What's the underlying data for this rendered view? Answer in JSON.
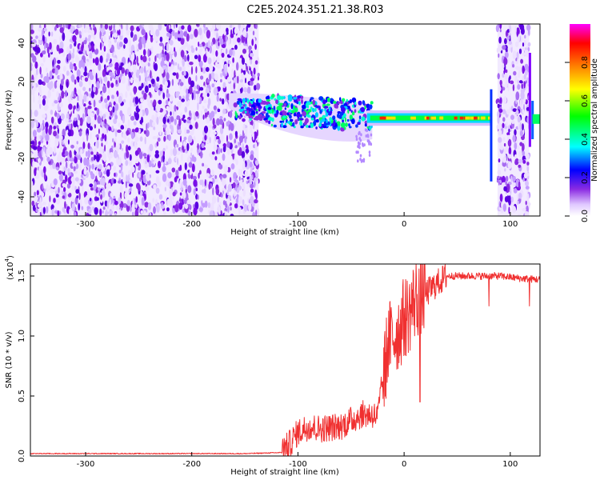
{
  "title": "C2E5.2024.351.21.38.R03",
  "chart_data": [
    {
      "type": "heatmap",
      "xlabel": "Height of straight line (km)",
      "ylabel": "Frequency (Hz)",
      "xlim": [
        -352,
        128
      ],
      "ylim": [
        -50,
        50
      ],
      "xticks": [
        -300,
        -200,
        -100,
        0,
        100
      ],
      "yticks": [
        -40,
        -20,
        0,
        20,
        40
      ],
      "colorbar": {
        "label": "Normalized spectral amplitude",
        "range": [
          0,
          1
        ],
        "ticks": [
          "0.0",
          "0.2",
          "0.4",
          "0.6",
          "0.8"
        ],
        "colors": [
          "#ffffff",
          "#e0c8ff",
          "#8a2be2",
          "#0000ff",
          "#00ffff",
          "#00ff00",
          "#ffff00",
          "#ff8000",
          "#ff0000",
          "#ff00ff"
        ]
      },
      "regions": [
        {
          "name": "noise",
          "x_range": [
            -352,
            -137
          ],
          "freq_range": [
            -50,
            50
          ]
        },
        {
          "name": "signal-onset",
          "x_range": [
            -160,
            -30
          ],
          "freq_center": 3
        },
        {
          "name": "strong-signal",
          "x_range": [
            -30,
            83
          ],
          "freq_center": 1
        },
        {
          "name": "noise",
          "x_range": [
            88,
            118
          ],
          "freq_range": [
            -50,
            50
          ]
        }
      ]
    },
    {
      "type": "line",
      "xlabel": "Height of straight line (km)",
      "ylabel": "SNR (10 * v/v)",
      "scale_label": "(x10",
      "scale_exp": "4",
      "scale_close": ")",
      "xlim": [
        -352,
        128
      ],
      "ylim": [
        0,
        1.6
      ],
      "xticks": [
        -300,
        -200,
        -100,
        0,
        100
      ],
      "yticks": [
        0.0,
        0.5,
        1.0,
        1.5
      ],
      "color": "#f03030",
      "x": [
        -352,
        -250,
        -150,
        -110,
        -100,
        -90,
        -80,
        -60,
        -50,
        -40,
        -30,
        -25,
        -20,
        -15,
        -10,
        -5,
        0,
        5,
        10,
        15,
        20,
        30,
        40,
        60,
        80,
        90,
        100,
        110,
        128
      ],
      "y": [
        0.02,
        0.02,
        0.02,
        0.03,
        0.15,
        0.2,
        0.18,
        0.2,
        0.25,
        0.3,
        0.3,
        0.28,
        0.6,
        0.95,
        1.0,
        1.05,
        1.15,
        1.2,
        1.3,
        1.35,
        1.35,
        1.43,
        1.5,
        1.5,
        1.5,
        1.5,
        1.49,
        1.48,
        1.47
      ]
    }
  ]
}
